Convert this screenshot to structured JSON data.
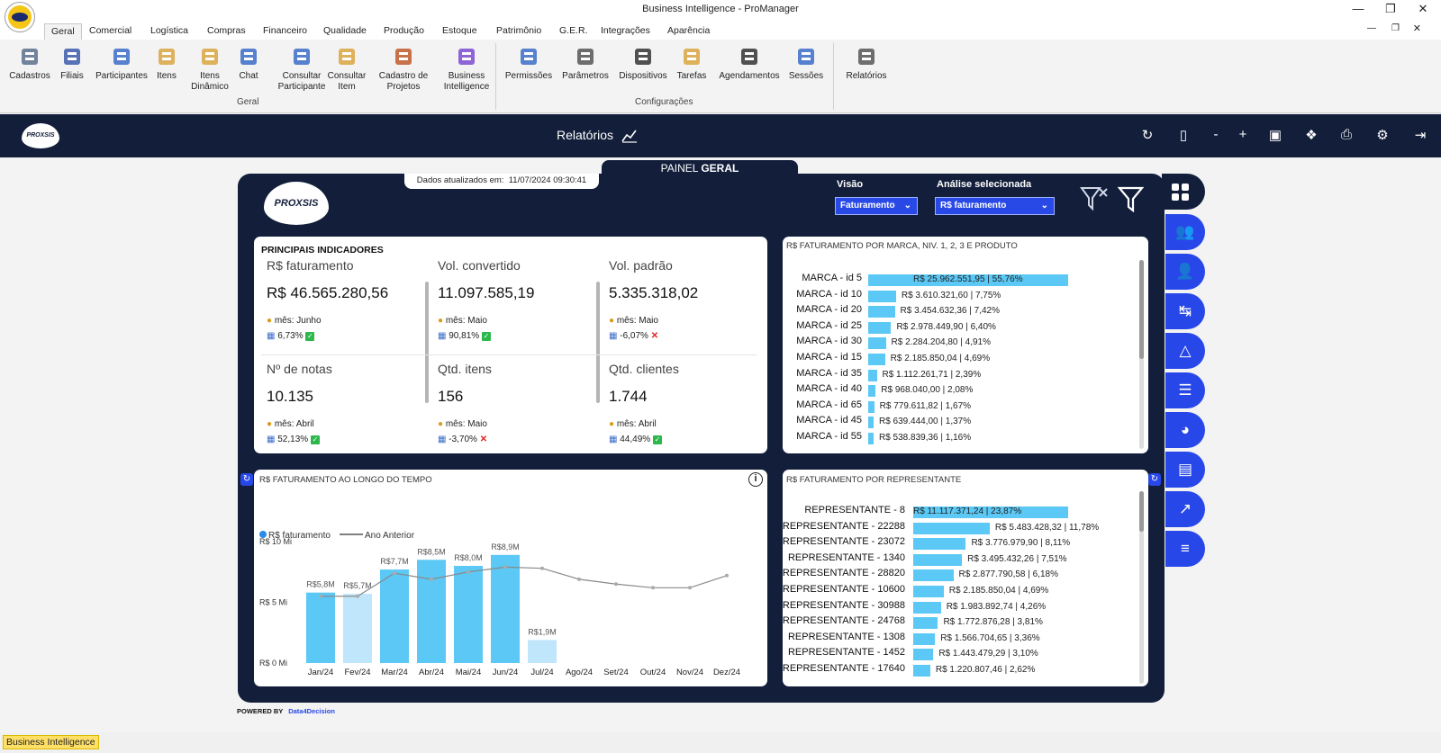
{
  "window": {
    "title": "Business Intelligence - ProManager"
  },
  "tabs": [
    "Geral",
    "Comercial",
    "Logística",
    "Compras",
    "Financeiro",
    "Qualidade",
    "Produção",
    "Estoque",
    "Patrimônio",
    "G.E.R.",
    "Integrações",
    "Aparência"
  ],
  "ribbon": {
    "geral_buttons": [
      "Cadastros",
      "Filiais",
      "Participantes",
      "Itens",
      "Itens Dinâmico",
      "Chat",
      "Consultar Participante",
      "Consultar Item",
      "Cadastro de Projetos",
      "Business Intelligence"
    ],
    "geral_label": "Geral",
    "config_buttons": [
      "Permissões",
      "Parâmetros",
      "Dispositivos",
      "Tarefas",
      "Agendamentos",
      "Sessões"
    ],
    "config_label": "Configurações",
    "relatorios": "Relatórios"
  },
  "nav": {
    "logo": "PROXSIS",
    "title": "Relatórios"
  },
  "panel": {
    "tab_prefix": "PAINEL",
    "tab_bold": "GERAL",
    "updated_label": "Dados atualizados em:",
    "updated_value": "11/07/2024 09:30:41",
    "logo": "PROXSIS",
    "visao_label": "Visão",
    "visao_value": "Faturamento",
    "analise_label": "Análise selecionada",
    "analise_value": "R$ faturamento",
    "powered_by": "POWERED BY",
    "powered_brand": "Data4Decision"
  },
  "indicators": {
    "title": "PRINCIPAIS INDICADORES",
    "items": [
      {
        "label": "R$ faturamento",
        "value": "R$ 46.565.280,56",
        "month": "mês: Junho",
        "pct": "6,73%",
        "status": "up"
      },
      {
        "label": "Vol. convertido",
        "value": "11.097.585,19",
        "month": "mês: Maio",
        "pct": "90,81%",
        "status": "up"
      },
      {
        "label": "Vol. padrão",
        "value": "5.335.318,02",
        "month": "mês: Maio",
        "pct": "-6,07%",
        "status": "down"
      },
      {
        "label": "Nº de notas",
        "value": "10.135",
        "month": "mês: Abril",
        "pct": "52,13%",
        "status": "up"
      },
      {
        "label": "Qtd. itens",
        "value": "156",
        "month": "mês: Maio",
        "pct": "-3,70%",
        "status": "down"
      },
      {
        "label": "Qtd. clientes",
        "value": "1.744",
        "month": "mês: Abril",
        "pct": "44,49%",
        "status": "up"
      }
    ]
  },
  "marca": {
    "title": "R$ FATURAMENTO POR MARCA, NIV. 1, 2, 3 E PRODUTO",
    "rows": [
      {
        "label": "MARCA - id 5",
        "value": "R$ 25.962.551,95 | 55,76%",
        "share": 55.76
      },
      {
        "label": "MARCA - id 10",
        "value": "R$ 3.610.321,60 | 7,75%",
        "share": 7.75
      },
      {
        "label": "MARCA - id 20",
        "value": "R$ 3.454.632,36 | 7,42%",
        "share": 7.42
      },
      {
        "label": "MARCA - id 25",
        "value": "R$ 2.978.449,90 | 6,40%",
        "share": 6.4
      },
      {
        "label": "MARCA - id 30",
        "value": "R$ 2.284.204,80 | 4,91%",
        "share": 4.91
      },
      {
        "label": "MARCA - id 15",
        "value": "R$ 2.185.850,04 | 4,69%",
        "share": 4.69
      },
      {
        "label": "MARCA - id 35",
        "value": "R$ 1.112.261,71 | 2,39%",
        "share": 2.39
      },
      {
        "label": "MARCA - id 40",
        "value": "R$ 968.040,00 | 2,08%",
        "share": 2.08
      },
      {
        "label": "MARCA - id 65",
        "value": "R$ 779.611,82 | 1,67%",
        "share": 1.67
      },
      {
        "label": "MARCA - id 45",
        "value": "R$ 639.444,00 | 1,37%",
        "share": 1.37
      },
      {
        "label": "MARCA - id 55",
        "value": "R$ 538.839,36 | 1,16%",
        "share": 1.16
      }
    ]
  },
  "representante": {
    "title": "R$ FATURAMENTO POR REPRESENTANTE",
    "rows": [
      {
        "label": "REPRESENTANTE - 8",
        "value": "R$ 11.117.371,24 | 23,87%",
        "share": 23.87
      },
      {
        "label": "REPRESENTANTE - 22288",
        "value": "R$ 5.483.428,32 | 11,78%",
        "share": 11.78
      },
      {
        "label": "REPRESENTANTE - 23072",
        "value": "R$ 3.776.979,90 | 8,11%",
        "share": 8.11
      },
      {
        "label": "REPRESENTANTE - 1340",
        "value": "R$ 3.495.432,26 | 7,51%",
        "share": 7.51
      },
      {
        "label": "REPRESENTANTE - 28820",
        "value": "R$ 2.877.790,58 | 6,18%",
        "share": 6.18
      },
      {
        "label": "REPRESENTANTE - 10600",
        "value": "R$ 2.185.850,04 | 4,69%",
        "share": 4.69
      },
      {
        "label": "REPRESENTANTE - 30988",
        "value": "R$ 1.983.892,74 | 4,26%",
        "share": 4.26
      },
      {
        "label": "REPRESENTANTE - 24768",
        "value": "R$ 1.772.876,28 | 3,81%",
        "share": 3.81
      },
      {
        "label": "REPRESENTANTE - 1308",
        "value": "R$ 1.566.704,65 | 3,36%",
        "share": 3.36
      },
      {
        "label": "REPRESENTANTE - 1452",
        "value": "R$ 1.443.479,29 | 3,10%",
        "share": 3.1
      },
      {
        "label": "REPRESENTANTE - 17640",
        "value": "R$ 1.220.807,46 | 2,62%",
        "share": 2.62
      }
    ]
  },
  "chart_data": {
    "type": "bar",
    "title": "R$ FATURAMENTO AO LONGO DO TEMPO",
    "categories": [
      "Jan/24",
      "Fev/24",
      "Mar/24",
      "Abr/24",
      "Mai/24",
      "Jun/24",
      "Jul/24",
      "Ago/24",
      "Set/24",
      "Out/24",
      "Nov/24",
      "Dez/24"
    ],
    "series": [
      {
        "name": "R$ faturamento",
        "type": "bar",
        "values": [
          5.8,
          5.7,
          7.7,
          8.5,
          8.0,
          8.9,
          1.9,
          null,
          null,
          null,
          null,
          null
        ],
        "labels": [
          "R$5,8M",
          "R$5,7M",
          "R$7,7M",
          "R$8,5M",
          "R$8,0M",
          "R$8,9M",
          "R$1,9M",
          "",
          "",
          "",
          "",
          ""
        ],
        "color": "#5bc8f5"
      },
      {
        "name": "Ano Anterior",
        "type": "line",
        "values": [
          5.5,
          5.5,
          7.4,
          6.9,
          7.5,
          7.9,
          7.8,
          6.9,
          6.5,
          6.2,
          6.2,
          7.2
        ],
        "color": "#888888"
      }
    ],
    "yticks": [
      "R$ 0 Mi",
      "R$ 5 Mi",
      "R$ 10 Mi"
    ],
    "ylim": [
      0,
      10
    ],
    "legend": "top-left"
  },
  "status": {
    "item": "Business Intelligence"
  },
  "colors": {
    "navy": "#121e3a",
    "accent": "#2747e8",
    "bar": "#5bc8f5",
    "bar_light": "#bfe6fb"
  }
}
